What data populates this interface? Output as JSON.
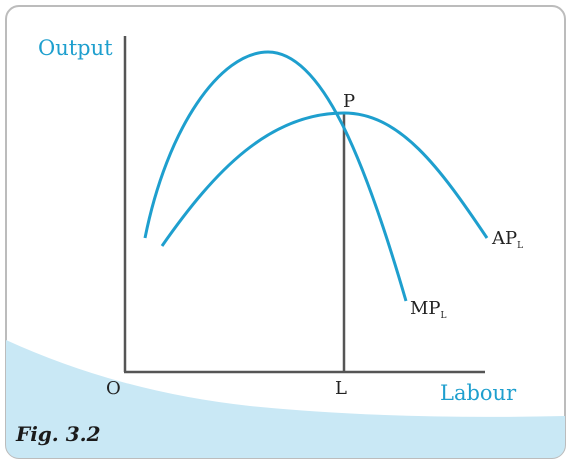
{
  "diagram": {
    "y_axis_label": "Output",
    "x_axis_label": "Labour",
    "origin_label": "O",
    "point_label": "P",
    "l_label": "L",
    "ap_label": "AP",
    "ap_sub": "L",
    "mp_label": "MP",
    "mp_sub": "L",
    "caption": "Fig. 3.2"
  },
  "colors": {
    "curve": "#1e9fce",
    "axis": "#555555",
    "border": "#bcbcbc",
    "corner_fill": "#c9e8f5"
  }
}
